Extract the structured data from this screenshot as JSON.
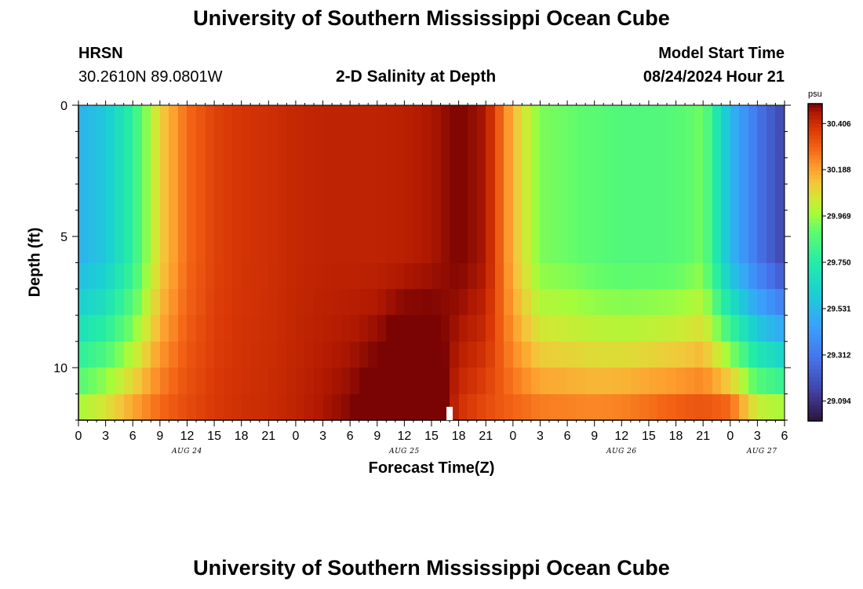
{
  "header": {
    "title": "University of Southern Mississippi Ocean Cube",
    "station": "HRSN",
    "coords": "30.2610N  89.0801W",
    "subtitle": "2-D Salinity at Depth",
    "model_start_label": "Model Start Time",
    "model_start_value": "08/24/2024 Hour 21"
  },
  "footer": {
    "title": "University of Southern Mississippi Ocean Cube"
  },
  "colorbar": {
    "unit": "psu",
    "tick_labels": [
      "30.406",
      "30.188",
      "29.969",
      "29.750",
      "29.531",
      "29.312",
      "29.094"
    ],
    "tick_values": [
      30.406,
      30.188,
      29.969,
      29.75,
      29.531,
      29.312,
      29.094
    ],
    "range": [
      29.0,
      30.5
    ],
    "colormap": "turbo"
  },
  "chart_data": {
    "type": "heatmap",
    "title": "2-D Salinity at Depth",
    "xlabel": "Forecast Time(Z)",
    "ylabel": "Depth (ft)",
    "x_tick_labels": [
      "0",
      "3",
      "6",
      "9",
      "12",
      "15",
      "18",
      "21",
      "0",
      "3",
      "6",
      "9",
      "12",
      "15",
      "18",
      "21",
      "0",
      "3",
      "6",
      "9",
      "12",
      "15",
      "18",
      "21",
      "0",
      "3",
      "6"
    ],
    "day_labels": [
      "AUG 24",
      "AUG 25",
      "AUG 26",
      "AUG 27"
    ],
    "y_tick_labels": [
      "0",
      "5",
      "10"
    ],
    "x_range_hours": [
      0,
      78
    ],
    "ylim_ft": [
      0,
      12
    ],
    "y_inverted": true,
    "units": "psu",
    "hours": [
      0,
      3,
      6,
      9,
      12,
      15,
      18,
      21,
      24,
      27,
      30,
      33,
      36,
      39,
      42,
      45,
      48,
      51,
      54,
      57,
      60,
      63,
      66,
      69,
      72,
      75,
      78
    ],
    "depth_layers_ft": [
      0.5,
      1.5,
      2.5,
      3.5,
      4.5,
      5.5,
      6.5,
      7.5,
      8.5,
      9.5,
      10.5,
      11.5
    ],
    "profiles": {
      "surface": [
        29.5,
        29.58,
        29.78,
        30.1,
        30.28,
        30.36,
        30.39,
        30.4,
        30.42,
        30.43,
        30.43,
        30.43,
        30.44,
        30.46,
        30.5,
        30.46,
        30.15,
        29.93,
        29.91,
        29.88,
        29.86,
        29.86,
        29.87,
        29.92,
        29.52,
        29.3,
        29.15
      ],
      "bottom": [
        29.98,
        30.06,
        30.18,
        30.28,
        30.34,
        30.38,
        30.4,
        30.41,
        30.43,
        30.46,
        30.49,
        30.55,
        30.66,
        30.62,
        30.4,
        30.34,
        30.29,
        30.25,
        30.24,
        30.23,
        30.24,
        30.27,
        30.3,
        30.32,
        30.28,
        30.03,
        29.98
      ]
    },
    "bottom_layers": 6,
    "marker_hour": 41
  }
}
